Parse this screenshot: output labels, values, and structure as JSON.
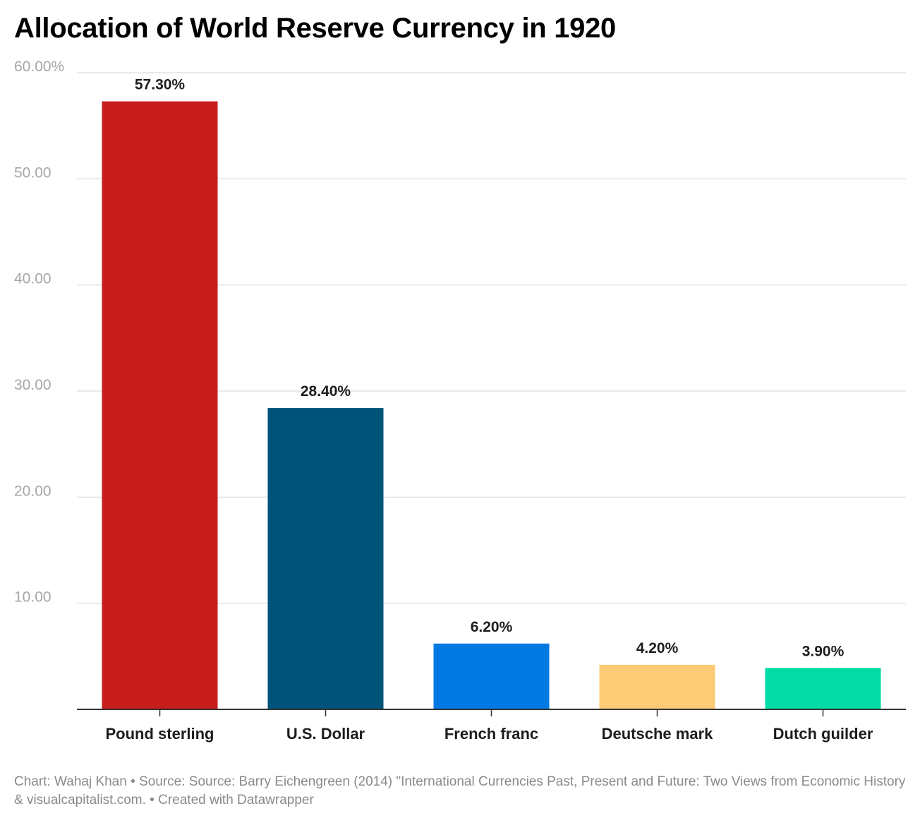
{
  "chart_data": {
    "type": "bar",
    "title": "Allocation of World Reserve Currency in 1920",
    "categories": [
      "Pound sterling",
      "U.S. Dollar",
      "French franc",
      "Deutsche mark",
      "Dutch guilder"
    ],
    "values": [
      57.3,
      28.4,
      6.2,
      4.2,
      3.9
    ],
    "value_labels": [
      "57.30%",
      "28.40%",
      "6.20%",
      "4.20%",
      "3.90%"
    ],
    "colors": [
      "#c71e1d",
      "#00547a",
      "#0079e3",
      "#fdca75",
      "#02dba5"
    ],
    "yticks": [
      10,
      20,
      30,
      40,
      50,
      60
    ],
    "ytick_labels": [
      "10.00",
      "20.00",
      "30.00",
      "40.00",
      "50.00",
      "60.00%"
    ],
    "ylim": [
      0,
      60
    ],
    "grid": true,
    "xlabel": "",
    "ylabel": ""
  },
  "footer": {
    "credit": "Chart: Wahaj Khan • Source: Source: Barry Eichengreen (2014) \"International Currencies Past, Present and Future: Two Views from Economic History & visualcapitalist.com. • Created with Datawrapper"
  }
}
